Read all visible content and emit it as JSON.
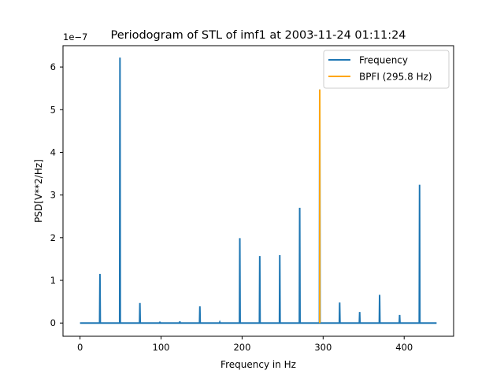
{
  "chart_data": {
    "type": "line",
    "title": "Periodogram of STL of imf1 at 2003-11-24 01:11:24",
    "xlabel": "Frequency in Hz",
    "ylabel": "PSD[V**2/Hz]",
    "y_offset_label": "1e−7",
    "y_scale_factor": 1e-07,
    "xlim": [
      -21,
      461
    ],
    "ylim": [
      -0.31,
      6.5
    ],
    "x_ticks": [
      0,
      100,
      200,
      300,
      400
    ],
    "x_tick_labels": [
      "0",
      "100",
      "200",
      "300",
      "400"
    ],
    "y_ticks": [
      0,
      1,
      2,
      3,
      4,
      5,
      6
    ],
    "y_tick_labels": [
      "0",
      "1",
      "2",
      "3",
      "4",
      "5",
      "6"
    ],
    "grid": false,
    "legend_position": "upper-right",
    "x_range": [
      0,
      440
    ],
    "series": [
      {
        "name": "Frequency",
        "color": "#1f77b4",
        "peaks": [
          {
            "x": 24.6,
            "y": 1.15
          },
          {
            "x": 49.3,
            "y": 6.22
          },
          {
            "x": 73.9,
            "y": 0.47
          },
          {
            "x": 98.6,
            "y": 0.03
          },
          {
            "x": 123.2,
            "y": 0.04
          },
          {
            "x": 147.9,
            "y": 0.39
          },
          {
            "x": 172.5,
            "y": 0.02
          },
          {
            "x": 197.2,
            "y": 1.99
          },
          {
            "x": 221.8,
            "y": 1.57
          },
          {
            "x": 246.5,
            "y": 1.59
          },
          {
            "x": 271.1,
            "y": 2.7
          },
          {
            "x": 295.8,
            "y": 5.47
          },
          {
            "x": 320.4,
            "y": 0.48
          },
          {
            "x": 345.1,
            "y": 0.26
          },
          {
            "x": 369.7,
            "y": 0.66
          },
          {
            "x": 394.4,
            "y": 0.19
          },
          {
            "x": 419.0,
            "y": 3.24
          }
        ]
      },
      {
        "name": "BPFI (295.8 Hz)",
        "color": "#ffa500",
        "x": [
          295.8,
          295.8
        ],
        "y": [
          0,
          5.47
        ]
      }
    ]
  }
}
